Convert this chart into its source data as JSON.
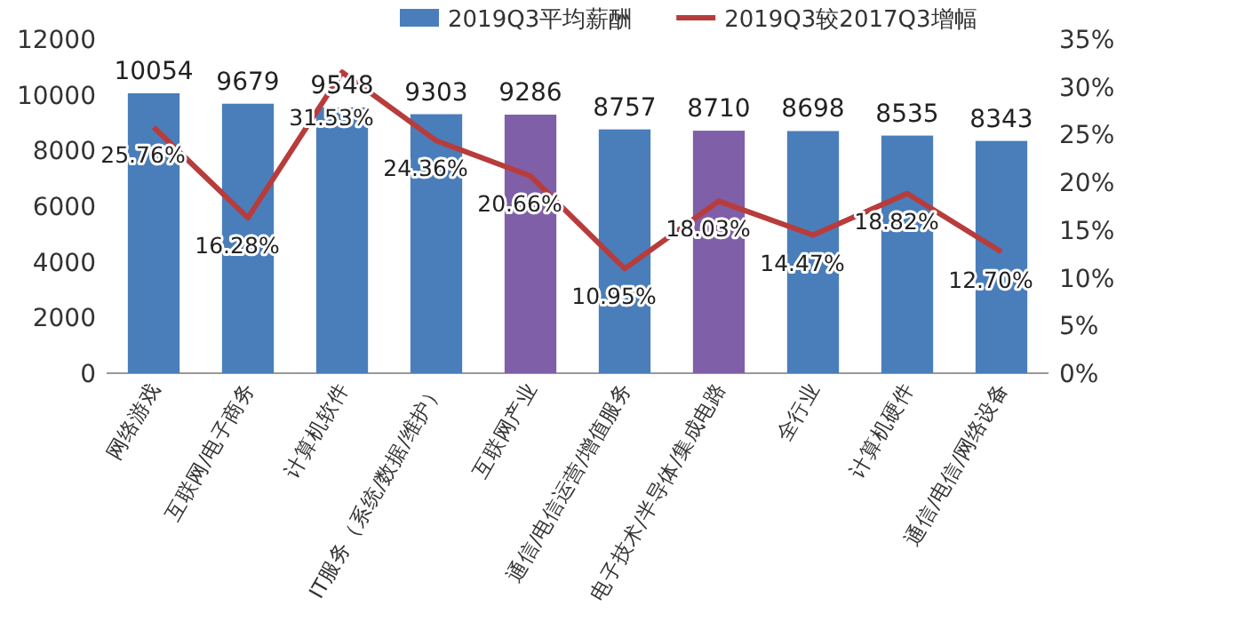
{
  "chart_data": {
    "type": "bar",
    "categories": [
      "网络游戏",
      "互联网/电子商务",
      "计算机软件",
      "IT服务（系统/数据/维护）",
      "互联网产业",
      "通信/电信运营/增值服务",
      "电子技术/半导体/集成电路",
      "全行业",
      "计算机硬件",
      "通信/电信/网络设备"
    ],
    "series": [
      {
        "name": "2019Q3平均薪酬",
        "color": "#4a7ebb",
        "colors": [
          "#4a7ebb",
          "#4a7ebb",
          "#4a7ebb",
          "#4a7ebb",
          "#7f5fa8",
          "#4a7ebb",
          "#7f5fa8",
          "#4a7ebb",
          "#4a7ebb",
          "#4a7ebb"
        ],
        "values": [
          10054,
          9679,
          9548,
          9303,
          9286,
          8757,
          8710,
          8698,
          8535,
          8343
        ],
        "value_labels": [
          "10054",
          "9679",
          "9548",
          "9303",
          "9286",
          "8757",
          "8710",
          "8698",
          "8535",
          "8343"
        ]
      },
      {
        "name": "2019Q3较2017Q3增幅",
        "type": "line",
        "axis": "y2",
        "color": "#b83c3c",
        "values": [
          25.76,
          16.28,
          31.53,
          24.36,
          20.66,
          10.95,
          18.03,
          14.47,
          18.82,
          12.7
        ],
        "value_labels": [
          "25.76%",
          "16.28%",
          "31.53%",
          "24.36%",
          "20.66%",
          "10.95%",
          "18.03%",
          "14.47%",
          "18.82%",
          "12.70%"
        ]
      }
    ],
    "ylim": [
      0,
      12000
    ],
    "yticks": [
      0,
      2000,
      4000,
      6000,
      8000,
      10000,
      12000
    ],
    "y2lim": [
      0,
      35
    ],
    "y2ticks": [
      {
        "value": 0,
        "label": "0%"
      },
      {
        "value": 5,
        "label": "5%"
      },
      {
        "value": 10,
        "label": "10%"
      },
      {
        "value": 15,
        "label": "15%"
      },
      {
        "value": 20,
        "label": "20%"
      },
      {
        "value": 25,
        "label": "25%"
      },
      {
        "value": 30,
        "label": "30%"
      },
      {
        "value": 35,
        "label": "35%"
      }
    ],
    "legend": "top",
    "marker": "none",
    "grid": false
  }
}
